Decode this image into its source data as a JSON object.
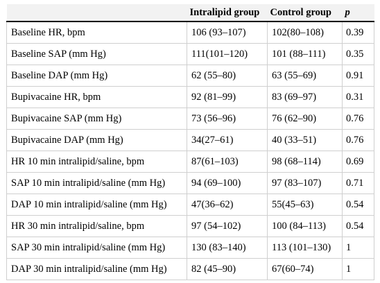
{
  "table": {
    "headers": [
      "",
      "Intralipid group",
      "Control group",
      "p"
    ],
    "rows": [
      [
        "Baseline HR, bpm",
        "106 (93–107)",
        "102(80–108)",
        "0.39"
      ],
      [
        "Baseline SAP (mm Hg)",
        "111(101–120)",
        "101 (88–111)",
        "0.35"
      ],
      [
        "Baseline DAP (mm Hg)",
        "62 (55–80)",
        "63 (55–69)",
        "0.91"
      ],
      [
        "Bupivacaine HR, bpm",
        "92 (81–99)",
        "83 (69–97)",
        "0.31"
      ],
      [
        "Bupivacaine SAP (mm Hg)",
        "73 (56–96)",
        "76 (62–90)",
        "0.76"
      ],
      [
        "Bupivacaine DAP (mm Hg)",
        "34(27–61)",
        "40 (33–51)",
        "0.76"
      ],
      [
        "HR 10 min intralipid/saline, bpm",
        "87(61–103)",
        "98 (68–114)",
        "0.69"
      ],
      [
        "SAP 10 min intralipid/saline (mm Hg)",
        "94 (69–100)",
        "97 (83–107)",
        "0.71"
      ],
      [
        "DAP 10 min intralipid/saline (mm Hg)",
        "47(36–62)",
        "55(45–63)",
        "0.54"
      ],
      [
        "HR 30 min intralipid/saline, bpm",
        "97 (54–102)",
        "100 (84–113)",
        "0.54"
      ],
      [
        "SAP 30 min intralipid/saline (mm Hg)",
        "130 (83–140)",
        "113 (101–130)",
        "1"
      ],
      [
        "DAP 30 min intralipid/saline (mm Hg)",
        "82 (45–90)",
        "67(60–74)",
        "1"
      ]
    ]
  }
}
